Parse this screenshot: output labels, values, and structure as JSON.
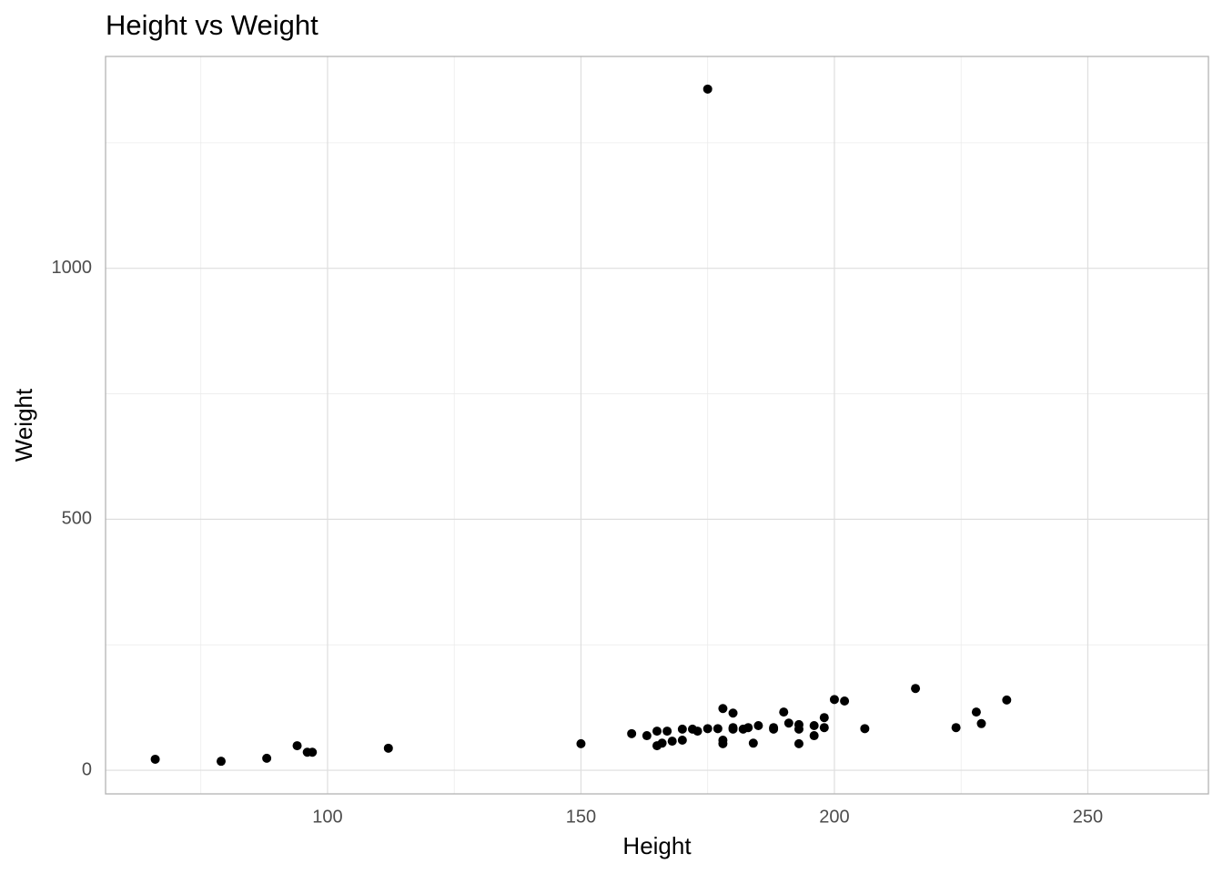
{
  "chart_data": {
    "type": "scatter",
    "title": "Height vs Weight",
    "xlabel": "Height",
    "ylabel": "Weight",
    "x": [
      66,
      79,
      88,
      94,
      96,
      97,
      112,
      150,
      160,
      163,
      165,
      165,
      166,
      167,
      168,
      170,
      170,
      172,
      173,
      175,
      175,
      177,
      178,
      178,
      178,
      180,
      180,
      180,
      182,
      183,
      184,
      185,
      188,
      188,
      190,
      191,
      193,
      193,
      193,
      196,
      196,
      198,
      198,
      200,
      202,
      206,
      216,
      224,
      228,
      229,
      234
    ],
    "y": [
      22,
      18,
      24,
      49,
      36,
      36,
      44,
      53,
      73,
      69,
      78,
      49,
      54,
      78,
      58,
      82,
      60,
      82,
      78,
      83,
      1357,
      83,
      123,
      60,
      53,
      114,
      85,
      82,
      82,
      85,
      54,
      89,
      85,
      82,
      116,
      94,
      91,
      82,
      53,
      89,
      69,
      105,
      85,
      141,
      138,
      83,
      163,
      85,
      116,
      93,
      140
    ],
    "color": "#000000",
    "xlim": [
      56.2,
      273.8
    ],
    "ylim": [
      -47,
      1422
    ],
    "xticks": [
      100,
      150,
      200,
      250
    ],
    "yticks": [
      0,
      500,
      1000
    ],
    "xminor": [
      75,
      125,
      175,
      225
    ],
    "yminor": [
      250,
      750,
      1250
    ],
    "grid": true
  }
}
